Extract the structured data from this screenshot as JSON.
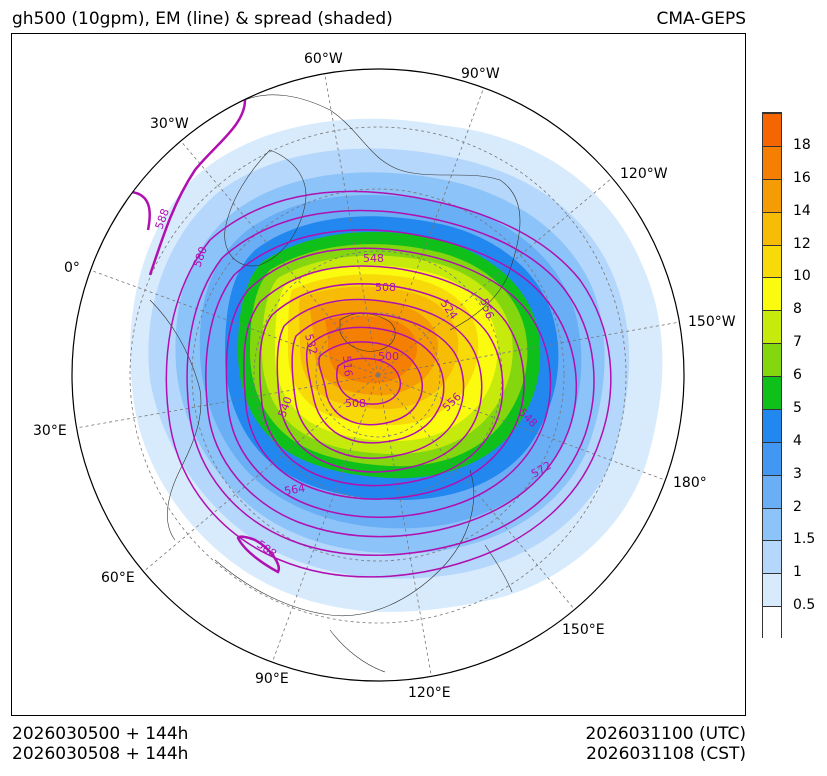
{
  "header": {
    "title_left": "gh500 (10gpm), EM (line) & spread (shaded)",
    "title_right": "CMA-GEPS"
  },
  "footer": {
    "init_utc": "2026030500 + 144h",
    "init_cst": "2026030508 + 144h",
    "valid_utc": "2026031100 (UTC)",
    "valid_cst": "2026031108 (CST)"
  },
  "map": {
    "projection": "north-polar-stereographic",
    "longitude_labels": [
      "60°W",
      "90°W",
      "30°W",
      "120°W",
      "0°",
      "150°W",
      "30°E",
      "180°",
      "60°E",
      "150°E",
      "90°E",
      "120°E"
    ],
    "contour_labels": [
      "588",
      "580",
      "548",
      "508",
      "524",
      "556",
      "532",
      "516",
      "500",
      "540",
      "508",
      "556",
      "548",
      "572",
      "564",
      "588"
    ],
    "colors": {
      "contour_line": "#b010b0",
      "coastline": "#333333"
    }
  },
  "colorbar": {
    "labels": [
      "18",
      "16",
      "14",
      "12",
      "10",
      "8",
      "7",
      "6",
      "5",
      "4",
      "3",
      "2",
      "1.5",
      "1",
      "0.5"
    ],
    "colors": [
      "#ffffff",
      "#d8ebfc",
      "#b4d7fb",
      "#8cc3f8",
      "#6aaef5",
      "#4197f2",
      "#2387f0",
      "#10c01a",
      "#84d60e",
      "#c6ea0c",
      "#fbfb10",
      "#f8da08",
      "#f6bc06",
      "#f59b04",
      "#f47f03",
      "#f56603"
    ]
  }
}
